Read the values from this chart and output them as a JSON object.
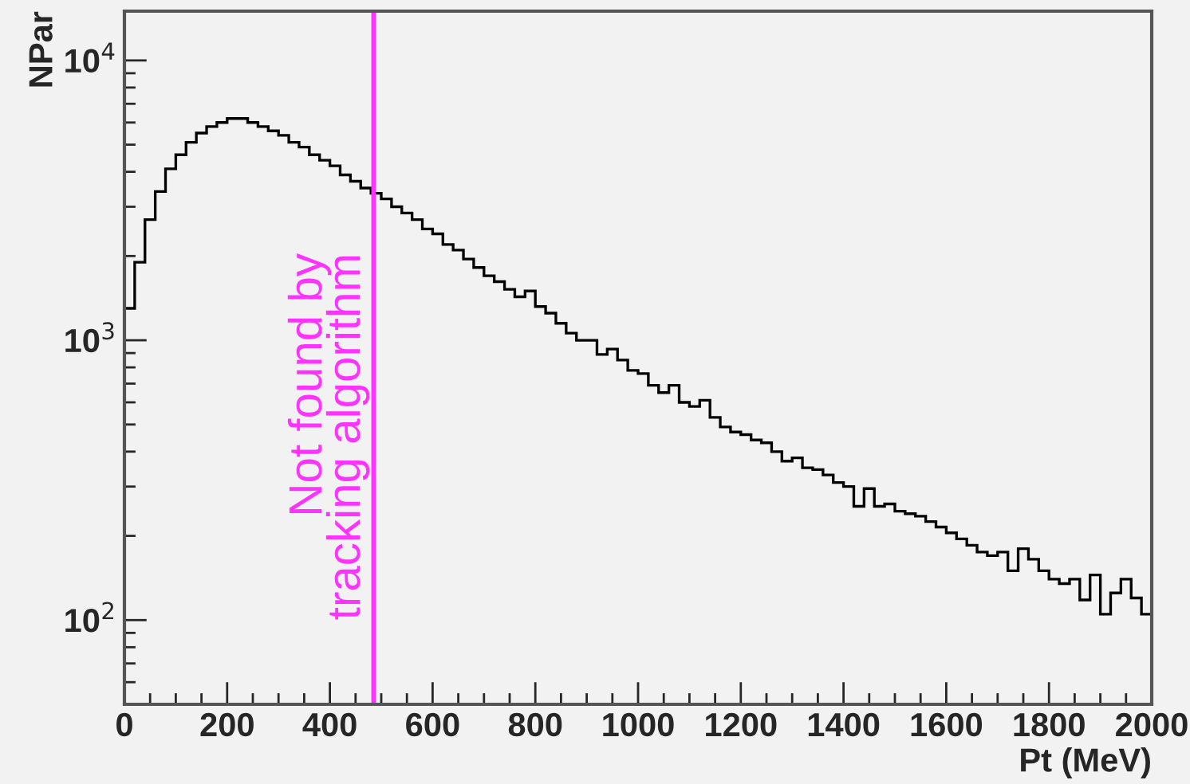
{
  "chart_data": {
    "type": "histogram",
    "xlabel": "Pt (MeV)",
    "ylabel": "NPar",
    "bins": [
      0,
      20,
      40,
      60,
      80,
      100,
      120,
      140,
      160,
      180,
      200,
      220,
      240,
      260,
      280,
      300,
      320,
      340,
      360,
      380,
      400,
      420,
      440,
      460,
      480,
      500,
      520,
      540,
      560,
      580,
      600,
      620,
      640,
      660,
      680,
      700,
      720,
      740,
      760,
      780,
      800,
      820,
      840,
      860,
      880,
      900,
      920,
      940,
      960,
      980,
      1000,
      1020,
      1040,
      1060,
      1080,
      1100,
      1120,
      1140,
      1160,
      1180,
      1200,
      1220,
      1240,
      1260,
      1280,
      1300,
      1320,
      1340,
      1360,
      1380,
      1400,
      1420,
      1440,
      1460,
      1480,
      1500,
      1520,
      1540,
      1560,
      1580,
      1600,
      1620,
      1640,
      1660,
      1680,
      1700,
      1720,
      1740,
      1760,
      1780,
      1800,
      1820,
      1840,
      1860,
      1880,
      1900,
      1920,
      1940,
      1960,
      1980,
      2000
    ],
    "values": [
      1300,
      1900,
      2700,
      3400,
      4100,
      4600,
      5100,
      5500,
      5800,
      6000,
      6200,
      6200,
      6000,
      5800,
      5600,
      5400,
      5100,
      4900,
      4600,
      4400,
      4200,
      3900,
      3700,
      3500,
      3350,
      3200,
      3000,
      2850,
      2700,
      2500,
      2400,
      2200,
      2100,
      1950,
      1820,
      1700,
      1620,
      1520,
      1430,
      1500,
      1320,
      1250,
      1150,
      1060,
      1000,
      1000,
      890,
      930,
      850,
      780,
      760,
      690,
      650,
      690,
      600,
      580,
      610,
      530,
      490,
      470,
      460,
      440,
      430,
      400,
      370,
      380,
      350,
      345,
      330,
      310,
      300,
      255,
      295,
      255,
      260,
      245,
      240,
      235,
      225,
      215,
      205,
      195,
      185,
      175,
      170,
      175,
      150,
      180,
      165,
      150,
      140,
      135,
      140,
      118,
      145,
      105,
      125,
      140,
      120,
      105
    ],
    "color": "#000000",
    "log": "y",
    "xlim": [
      0,
      2000
    ],
    "ylim": [
      50,
      15000
    ],
    "xticks": [
      0,
      200,
      400,
      600,
      800,
      1000,
      1200,
      1400,
      1600,
      1800,
      2000
    ],
    "yticks": [
      {
        "value": 100,
        "label": "10$^{2}$"
      },
      {
        "value": 1000,
        "label": "10$^{3}$"
      },
      {
        "value": 10000,
        "label": "10$^{4}$"
      }
    ],
    "grid": false,
    "ref_lines": [
      {
        "axis": "x",
        "value": 485,
        "label": "Not found by\ntracking algorithm",
        "color": "#ff33ff"
      }
    ]
  }
}
